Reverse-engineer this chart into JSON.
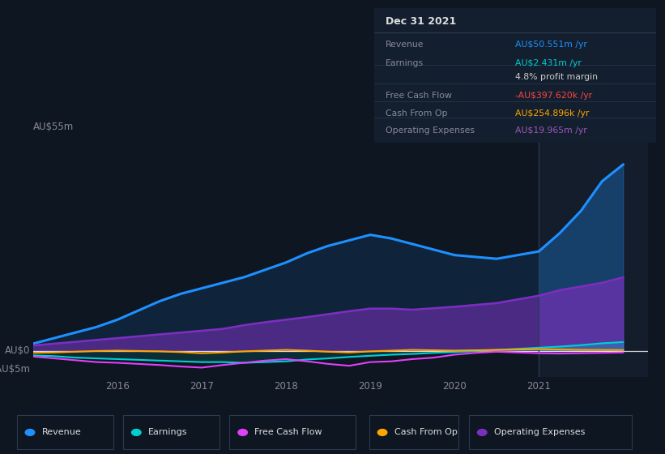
{
  "background_color": "#0e1621",
  "plot_bg_color": "#0e1621",
  "years": [
    2015.0,
    2015.25,
    2015.5,
    2015.75,
    2016.0,
    2016.25,
    2016.5,
    2016.75,
    2017.0,
    2017.25,
    2017.5,
    2017.75,
    2018.0,
    2018.25,
    2018.5,
    2018.75,
    2019.0,
    2019.25,
    2019.5,
    2019.75,
    2020.0,
    2020.25,
    2020.5,
    2020.75,
    2021.0,
    2021.25,
    2021.5,
    2021.75,
    2022.0
  ],
  "revenue": [
    2.0,
    3.5,
    5.0,
    6.5,
    8.5,
    11.0,
    13.5,
    15.5,
    17.0,
    18.5,
    20.0,
    22.0,
    24.0,
    26.5,
    28.5,
    30.0,
    31.5,
    30.5,
    29.0,
    27.5,
    26.0,
    25.5,
    25.0,
    26.0,
    27.0,
    32.0,
    38.0,
    46.0,
    50.551
  ],
  "earnings": [
    -1.2,
    -1.4,
    -1.8,
    -2.0,
    -2.2,
    -2.4,
    -2.6,
    -2.8,
    -3.0,
    -3.0,
    -3.2,
    -3.0,
    -2.8,
    -2.3,
    -2.0,
    -1.6,
    -1.3,
    -1.0,
    -0.8,
    -0.5,
    -0.3,
    -0.0,
    0.3,
    0.6,
    0.9,
    1.2,
    1.6,
    2.1,
    2.431
  ],
  "free_cash_flow": [
    -1.5,
    -2.0,
    -2.5,
    -3.0,
    -3.2,
    -3.5,
    -3.8,
    -4.2,
    -4.5,
    -3.8,
    -3.2,
    -2.6,
    -2.2,
    -2.8,
    -3.5,
    -4.0,
    -3.0,
    -2.8,
    -2.2,
    -1.8,
    -1.0,
    -0.5,
    -0.2,
    -0.4,
    -0.6,
    -0.7,
    -0.6,
    -0.5,
    -0.3976
  ],
  "cash_from_op": [
    -0.5,
    -0.4,
    -0.2,
    0.0,
    0.1,
    0.0,
    -0.1,
    -0.3,
    -0.6,
    -0.4,
    -0.1,
    0.1,
    0.3,
    0.1,
    -0.2,
    -0.4,
    -0.1,
    0.1,
    0.3,
    0.2,
    0.1,
    0.2,
    0.3,
    0.4,
    0.5,
    0.4,
    0.3,
    0.28,
    0.254896
  ],
  "operating_expenses": [
    1.5,
    2.0,
    2.5,
    3.0,
    3.5,
    4.0,
    4.5,
    5.0,
    5.5,
    6.0,
    7.0,
    7.8,
    8.5,
    9.2,
    10.0,
    10.8,
    11.5,
    11.5,
    11.2,
    11.6,
    12.0,
    12.5,
    13.0,
    14.0,
    15.0,
    16.5,
    17.5,
    18.5,
    19.965
  ],
  "revenue_color": "#1e90ff",
  "earnings_color": "#00ced1",
  "free_cash_flow_color": "#e040fb",
  "cash_from_op_color": "#ffa500",
  "operating_expenses_color": "#7b2fbe",
  "highlight_start": 2021.0,
  "ylim_top": 57,
  "ylim_bottom": -7,
  "xlim_left": 2015.0,
  "xlim_right": 2022.3,
  "xtick_positions": [
    2016,
    2017,
    2018,
    2019,
    2020,
    2021
  ],
  "info_box": {
    "title": "Dec 31 2021",
    "rows": [
      {
        "label": "Revenue",
        "value": "AU$50.551m /yr",
        "value_color": "#1e90ff"
      },
      {
        "label": "Earnings",
        "value": "AU$2.431m /yr",
        "value_color": "#00ced1"
      },
      {
        "label": "",
        "value": "4.8% profit margin",
        "value_color": "#cccccc"
      },
      {
        "label": "Free Cash Flow",
        "value": "-AU$397.620k /yr",
        "value_color": "#ff4444"
      },
      {
        "label": "Cash From Op",
        "value": "AU$254.896k /yr",
        "value_color": "#ffa500"
      },
      {
        "label": "Operating Expenses",
        "value": "AU$19.965m /yr",
        "value_color": "#9b59b6"
      }
    ]
  },
  "legend_items": [
    {
      "label": "Revenue",
      "color": "#1e90ff"
    },
    {
      "label": "Earnings",
      "color": "#00ced1"
    },
    {
      "label": "Free Cash Flow",
      "color": "#e040fb"
    },
    {
      "label": "Cash From Op",
      "color": "#ffa500"
    },
    {
      "label": "Operating Expenses",
      "color": "#7b2fbe"
    }
  ],
  "grid_color": "#1e2d40",
  "text_color": "#888899",
  "white_color": "#dddddd",
  "zero_line_color": "#ffffff",
  "divider_color": "#2a3a50",
  "info_bg_color": "#131f2e",
  "highlight_bg_color": "#162030"
}
